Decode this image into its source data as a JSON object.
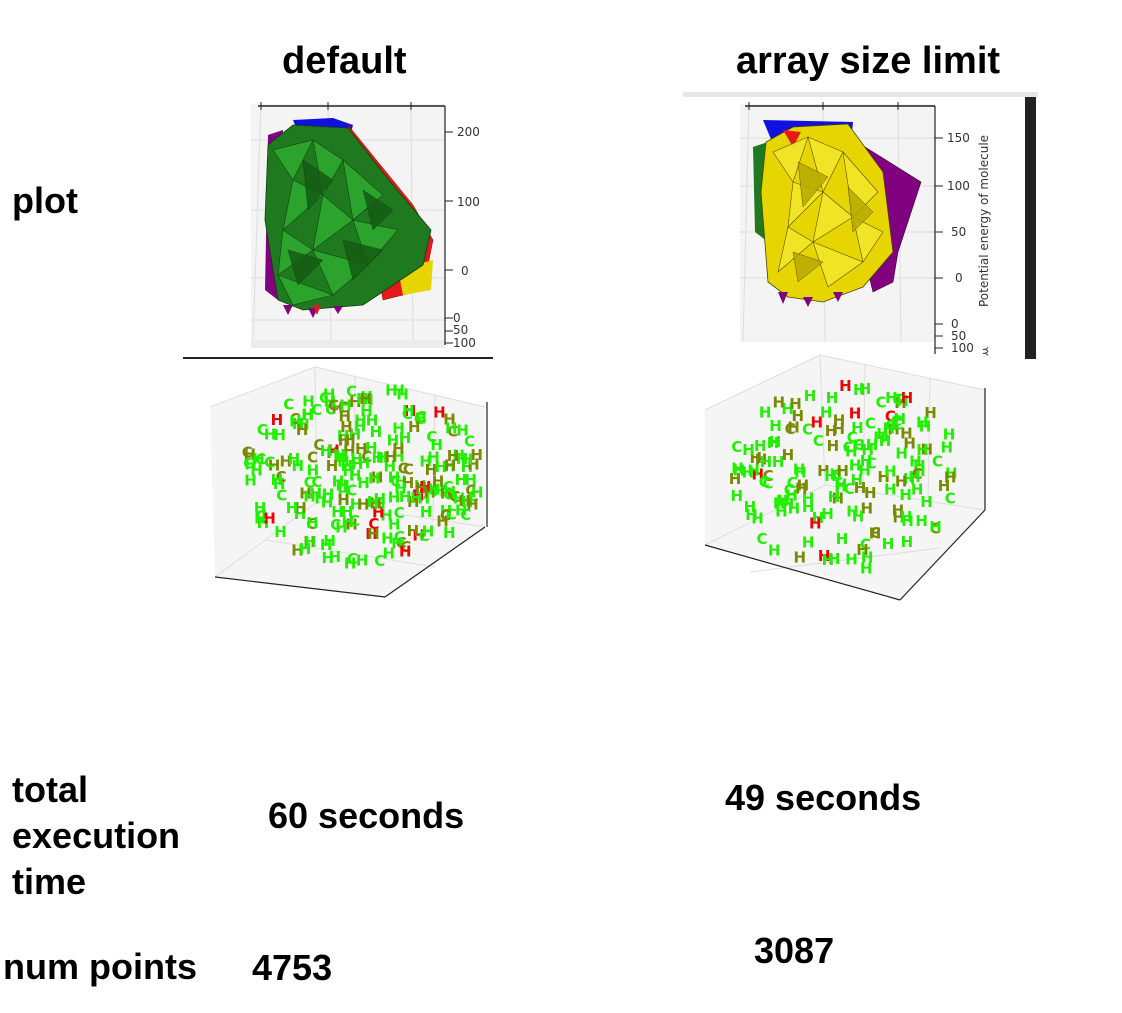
{
  "columns": {
    "default": "default",
    "array_size_limit": "array size limit"
  },
  "rows": {
    "plot": "plot",
    "total_execution_time": [
      "total",
      "execution",
      "time"
    ],
    "num_points": "num points"
  },
  "values": {
    "default_time": "60 seconds",
    "array_time": "49 seconds",
    "default_points": "4753",
    "array_points": "3087"
  },
  "surface_default": {
    "z_ticks": [
      "200",
      "100",
      "0"
    ],
    "y_ticks": [
      "0",
      "50",
      "100"
    ],
    "colors": [
      "#1a6e1a",
      "#e41a1a",
      "#e6d500",
      "#800080",
      "#1010e0"
    ]
  },
  "surface_array": {
    "z_ticks": [
      "150",
      "100",
      "50",
      "0"
    ],
    "y_ticks": [
      "0",
      "50",
      "100"
    ],
    "zlabel": "Potential energy of molecule",
    "colors": [
      "#e6d500",
      "#800080",
      "#1a6e1a",
      "#e41a1a",
      "#1010e0"
    ]
  },
  "atom_colors": {
    "H_bright": "#22ee00",
    "H_olive": "#7a8a00",
    "O_red": "#ee0000"
  }
}
